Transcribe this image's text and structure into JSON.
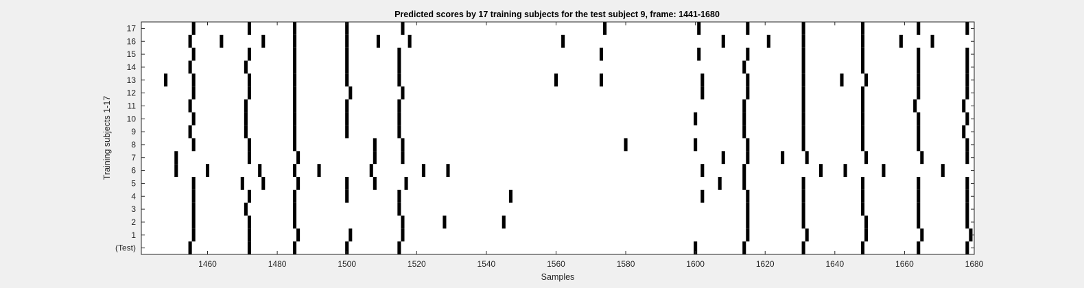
{
  "chart_data": {
    "type": "heatmap",
    "title": "Predicted scores by 17 training subjects for the test subject 9, frame: 1441-1680",
    "xlabel": "Samples",
    "ylabel": "Training subjects 1-17",
    "xlim": [
      1441,
      1680
    ],
    "xticks": [
      1460,
      1480,
      1500,
      1520,
      1540,
      1560,
      1580,
      1600,
      1620,
      1640,
      1660,
      1680
    ],
    "rows": [
      "(Test)",
      "1",
      "2",
      "3",
      "4",
      "5",
      "6",
      "7",
      "8",
      "9",
      "10",
      "11",
      "12",
      "13",
      "14",
      "15",
      "16",
      "17"
    ],
    "grid": false,
    "colors": {
      "mark": "#000000",
      "background": "#ffffff",
      "figure": "#f0f0f0"
    },
    "events": [
      [
        1455,
        1472,
        1485,
        1500,
        1515,
        1600,
        1614,
        1631,
        1648,
        1664,
        1678
      ],
      [
        1456,
        1472,
        1486,
        1501,
        1516,
        1615,
        1632,
        1649,
        1665,
        1679
      ],
      [
        1456,
        1472,
        1485,
        1516,
        1528,
        1545,
        1615,
        1631,
        1649,
        1664,
        1678
      ],
      [
        1456,
        1471,
        1485,
        1515,
        1615,
        1631,
        1648,
        1664,
        1678
      ],
      [
        1456,
        1472,
        1485,
        1500,
        1515,
        1547,
        1602,
        1615,
        1631,
        1648,
        1664,
        1678
      ],
      [
        1456,
        1470,
        1476,
        1486,
        1500,
        1508,
        1517,
        1607,
        1614,
        1631,
        1648,
        1664,
        1678
      ],
      [
        1451,
        1460,
        1475,
        1485,
        1492,
        1507,
        1522,
        1529,
        1602,
        1614,
        1636,
        1643,
        1654,
        1671
      ],
      [
        1451,
        1472,
        1486,
        1508,
        1516,
        1608,
        1615,
        1625,
        1632,
        1649,
        1665,
        1678
      ],
      [
        1456,
        1472,
        1485,
        1508,
        1516,
        1580,
        1600,
        1615,
        1631,
        1648,
        1664,
        1678
      ],
      [
        1455,
        1471,
        1485,
        1500,
        1515,
        1614,
        1631,
        1648,
        1664,
        1677
      ],
      [
        1456,
        1471,
        1485,
        1500,
        1515,
        1600,
        1614,
        1631,
        1648,
        1664,
        1678
      ],
      [
        1455,
        1471,
        1485,
        1500,
        1515,
        1614,
        1631,
        1648,
        1663,
        1677
      ],
      [
        1456,
        1472,
        1485,
        1501,
        1516,
        1602,
        1615,
        1631,
        1648,
        1664,
        1678
      ],
      [
        1448,
        1456,
        1472,
        1485,
        1500,
        1515,
        1560,
        1573,
        1602,
        1615,
        1631,
        1642,
        1649,
        1664,
        1678
      ],
      [
        1455,
        1471,
        1485,
        1500,
        1515,
        1614,
        1631,
        1648,
        1664,
        1678
      ],
      [
        1456,
        1472,
        1485,
        1500,
        1515,
        1573,
        1601,
        1615,
        1631,
        1648,
        1664,
        1678
      ],
      [
        1455,
        1464,
        1476,
        1485,
        1500,
        1509,
        1518,
        1562,
        1608,
        1621,
        1631,
        1648,
        1659,
        1668
      ],
      [
        1456,
        1472,
        1485,
        1500,
        1516,
        1574,
        1601,
        1615,
        1631,
        1648,
        1664,
        1678
      ]
    ]
  }
}
